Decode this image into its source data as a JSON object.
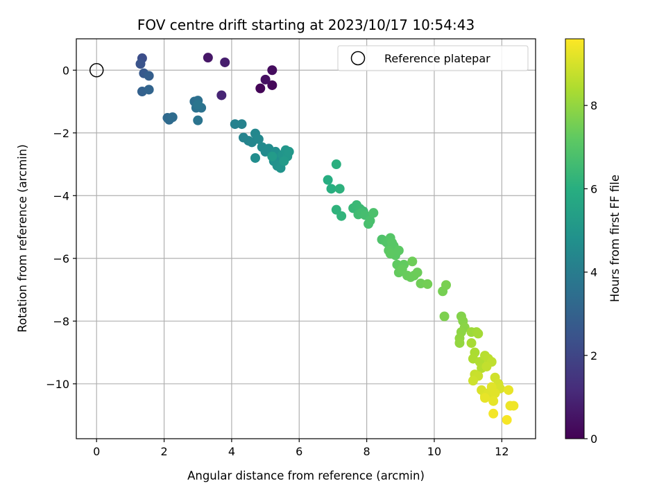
{
  "chart_data": {
    "type": "scatter",
    "title": "FOV centre drift starting at 2023/10/17 10:54:43",
    "xlabel": "Angular distance from reference (arcmin)",
    "ylabel": "Rotation from reference (arcmin)",
    "xlim": [
      -0.6,
      13.0
    ],
    "ylim": [
      -11.75,
      1.0
    ],
    "xticks": [
      0,
      2,
      4,
      6,
      8,
      10,
      12
    ],
    "yticks": [
      0,
      -2,
      -4,
      -6,
      -8,
      -10
    ],
    "xtick_labels": [
      "0",
      "2",
      "4",
      "6",
      "8",
      "10",
      "12"
    ],
    "ytick_labels": [
      "0",
      "−2",
      "−4",
      "−6",
      "−8",
      "−10"
    ],
    "grid": true,
    "legend": {
      "placement": "top-right",
      "entries": [
        "Reference platepar"
      ]
    },
    "reference_point": {
      "x": 0,
      "y": 0,
      "label": "Reference platepar"
    },
    "colorbar": {
      "label": "Hours from first FF file",
      "colormap": "viridis",
      "range": [
        0,
        9.6
      ],
      "ticks": [
        0,
        2,
        4,
        6,
        8
      ],
      "tick_labels": [
        "0",
        "2",
        "4",
        "6",
        "8"
      ]
    },
    "points": [
      {
        "x": 4.85,
        "y": -0.58,
        "c": 0.1
      },
      {
        "x": 5.2,
        "y": -0.48,
        "c": 0.2
      },
      {
        "x": 5.2,
        "y": 0.0,
        "c": 0.3
      },
      {
        "x": 5.0,
        "y": -0.3,
        "c": 0.4
      },
      {
        "x": 3.3,
        "y": 0.4,
        "c": 0.6
      },
      {
        "x": 3.8,
        "y": 0.25,
        "c": 0.8
      },
      {
        "x": 3.7,
        "y": -0.8,
        "c": 1.0
      },
      {
        "x": 1.35,
        "y": 0.38,
        "c": 2.3
      },
      {
        "x": 1.3,
        "y": 0.2,
        "c": 2.5
      },
      {
        "x": 1.4,
        "y": -0.1,
        "c": 2.7
      },
      {
        "x": 1.55,
        "y": -0.18,
        "c": 2.9
      },
      {
        "x": 1.35,
        "y": -0.68,
        "c": 3.0
      },
      {
        "x": 1.55,
        "y": -0.62,
        "c": 3.1
      },
      {
        "x": 2.1,
        "y": -1.52,
        "c": 3.3
      },
      {
        "x": 2.15,
        "y": -1.58,
        "c": 3.35
      },
      {
        "x": 2.25,
        "y": -1.5,
        "c": 3.4
      },
      {
        "x": 2.9,
        "y": -1.0,
        "c": 3.5
      },
      {
        "x": 3.0,
        "y": -0.97,
        "c": 3.55
      },
      {
        "x": 2.95,
        "y": -1.2,
        "c": 3.6
      },
      {
        "x": 3.1,
        "y": -1.2,
        "c": 3.65
      },
      {
        "x": 3.0,
        "y": -1.6,
        "c": 3.7
      },
      {
        "x": 3.0,
        "y": -1.1,
        "c": 3.75
      },
      {
        "x": 4.1,
        "y": -1.72,
        "c": 4.2
      },
      {
        "x": 4.3,
        "y": -1.72,
        "c": 4.25
      },
      {
        "x": 4.35,
        "y": -2.15,
        "c": 4.3
      },
      {
        "x": 4.5,
        "y": -2.25,
        "c": 4.35
      },
      {
        "x": 4.6,
        "y": -2.3,
        "c": 4.4
      },
      {
        "x": 4.7,
        "y": -2.02,
        "c": 4.45
      },
      {
        "x": 4.8,
        "y": -2.2,
        "c": 4.5
      },
      {
        "x": 4.9,
        "y": -2.45,
        "c": 4.55
      },
      {
        "x": 5.0,
        "y": -2.6,
        "c": 4.6
      },
      {
        "x": 5.1,
        "y": -2.5,
        "c": 4.65
      },
      {
        "x": 4.7,
        "y": -2.8,
        "c": 4.7
      },
      {
        "x": 5.3,
        "y": -2.6,
        "c": 4.75
      },
      {
        "x": 5.4,
        "y": -2.8,
        "c": 4.8
      },
      {
        "x": 5.25,
        "y": -2.9,
        "c": 4.85
      },
      {
        "x": 5.35,
        "y": -3.05,
        "c": 4.9
      },
      {
        "x": 5.45,
        "y": -3.12,
        "c": 4.95
      },
      {
        "x": 5.5,
        "y": -2.7,
        "c": 5.0
      },
      {
        "x": 5.6,
        "y": -2.55,
        "c": 5.05
      },
      {
        "x": 5.65,
        "y": -2.75,
        "c": 5.1
      },
      {
        "x": 5.7,
        "y": -2.6,
        "c": 5.15
      },
      {
        "x": 5.55,
        "y": -2.9,
        "c": 5.2
      },
      {
        "x": 5.2,
        "y": -2.75,
        "c": 5.25
      },
      {
        "x": 6.85,
        "y": -3.5,
        "c": 6.0
      },
      {
        "x": 6.95,
        "y": -3.78,
        "c": 6.05
      },
      {
        "x": 7.1,
        "y": -3.0,
        "c": 6.1
      },
      {
        "x": 7.2,
        "y": -3.78,
        "c": 6.15
      },
      {
        "x": 7.1,
        "y": -4.45,
        "c": 6.2
      },
      {
        "x": 7.25,
        "y": -4.65,
        "c": 6.25
      },
      {
        "x": 7.6,
        "y": -4.4,
        "c": 6.4
      },
      {
        "x": 7.7,
        "y": -4.3,
        "c": 6.45
      },
      {
        "x": 7.8,
        "y": -4.42,
        "c": 6.5
      },
      {
        "x": 7.9,
        "y": -4.5,
        "c": 6.55
      },
      {
        "x": 7.75,
        "y": -4.6,
        "c": 6.6
      },
      {
        "x": 7.85,
        "y": -4.55,
        "c": 6.65
      },
      {
        "x": 7.95,
        "y": -4.62,
        "c": 6.7
      },
      {
        "x": 8.05,
        "y": -4.9,
        "c": 6.75
      },
      {
        "x": 8.1,
        "y": -4.8,
        "c": 6.8
      },
      {
        "x": 8.2,
        "y": -4.55,
        "c": 6.85
      },
      {
        "x": 8.45,
        "y": -5.4,
        "c": 6.9
      },
      {
        "x": 8.55,
        "y": -5.45,
        "c": 6.95
      },
      {
        "x": 8.6,
        "y": -5.5,
        "c": 7.0
      },
      {
        "x": 8.7,
        "y": -5.35,
        "c": 7.05
      },
      {
        "x": 8.75,
        "y": -5.5,
        "c": 7.1
      },
      {
        "x": 8.8,
        "y": -5.6,
        "c": 7.12
      },
      {
        "x": 8.65,
        "y": -5.75,
        "c": 7.15
      },
      {
        "x": 8.85,
        "y": -5.9,
        "c": 7.18
      },
      {
        "x": 8.95,
        "y": -5.75,
        "c": 7.2
      },
      {
        "x": 8.7,
        "y": -5.85,
        "c": 7.22
      },
      {
        "x": 8.9,
        "y": -6.2,
        "c": 7.25
      },
      {
        "x": 9.0,
        "y": -6.3,
        "c": 7.28
      },
      {
        "x": 9.1,
        "y": -6.2,
        "c": 7.3
      },
      {
        "x": 8.95,
        "y": -6.45,
        "c": 7.32
      },
      {
        "x": 9.05,
        "y": -6.35,
        "c": 7.35
      },
      {
        "x": 9.2,
        "y": -6.55,
        "c": 7.38
      },
      {
        "x": 9.3,
        "y": -6.6,
        "c": 7.4
      },
      {
        "x": 9.4,
        "y": -6.55,
        "c": 7.42
      },
      {
        "x": 9.5,
        "y": -6.45,
        "c": 7.45
      },
      {
        "x": 9.35,
        "y": -6.1,
        "c": 7.48
      },
      {
        "x": 9.6,
        "y": -6.8,
        "c": 7.5
      },
      {
        "x": 9.8,
        "y": -6.82,
        "c": 7.55
      },
      {
        "x": 10.25,
        "y": -7.05,
        "c": 7.6
      },
      {
        "x": 10.35,
        "y": -6.85,
        "c": 7.65
      },
      {
        "x": 10.3,
        "y": -7.85,
        "c": 7.7
      },
      {
        "x": 10.8,
        "y": -7.85,
        "c": 7.8
      },
      {
        "x": 10.85,
        "y": -8.0,
        "c": 7.85
      },
      {
        "x": 10.9,
        "y": -8.2,
        "c": 7.9
      },
      {
        "x": 10.8,
        "y": -8.35,
        "c": 7.95
      },
      {
        "x": 10.75,
        "y": -8.55,
        "c": 8.0
      },
      {
        "x": 10.75,
        "y": -8.7,
        "c": 8.05
      },
      {
        "x": 11.1,
        "y": -8.35,
        "c": 8.2
      },
      {
        "x": 11.25,
        "y": -8.35,
        "c": 8.25
      },
      {
        "x": 11.3,
        "y": -8.4,
        "c": 8.3
      },
      {
        "x": 11.1,
        "y": -8.7,
        "c": 8.35
      },
      {
        "x": 11.2,
        "y": -9.0,
        "c": 8.4
      },
      {
        "x": 11.15,
        "y": -9.2,
        "c": 8.45
      },
      {
        "x": 11.35,
        "y": -9.3,
        "c": 8.5
      },
      {
        "x": 11.4,
        "y": -9.5,
        "c": 8.55
      },
      {
        "x": 11.5,
        "y": -9.1,
        "c": 8.6
      },
      {
        "x": 11.6,
        "y": -9.2,
        "c": 8.65
      },
      {
        "x": 11.7,
        "y": -9.3,
        "c": 8.7
      },
      {
        "x": 11.55,
        "y": -9.45,
        "c": 8.75
      },
      {
        "x": 11.2,
        "y": -9.7,
        "c": 8.8
      },
      {
        "x": 11.3,
        "y": -9.75,
        "c": 8.85
      },
      {
        "x": 11.15,
        "y": -9.9,
        "c": 8.9
      },
      {
        "x": 11.8,
        "y": -9.8,
        "c": 8.95
      },
      {
        "x": 11.9,
        "y": -10.0,
        "c": 9.0
      },
      {
        "x": 11.95,
        "y": -10.15,
        "c": 9.05
      },
      {
        "x": 11.4,
        "y": -10.2,
        "c": 9.1
      },
      {
        "x": 11.5,
        "y": -10.4,
        "c": 9.12
      },
      {
        "x": 11.6,
        "y": -10.3,
        "c": 9.15
      },
      {
        "x": 11.7,
        "y": -10.1,
        "c": 9.18
      },
      {
        "x": 11.8,
        "y": -10.3,
        "c": 9.2
      },
      {
        "x": 11.75,
        "y": -10.55,
        "c": 9.25
      },
      {
        "x": 11.5,
        "y": -10.45,
        "c": 9.28
      },
      {
        "x": 12.2,
        "y": -10.2,
        "c": 9.3
      },
      {
        "x": 12.25,
        "y": -10.7,
        "c": 9.35
      },
      {
        "x": 12.35,
        "y": -10.7,
        "c": 9.4
      },
      {
        "x": 11.75,
        "y": -10.95,
        "c": 9.45
      },
      {
        "x": 12.15,
        "y": -11.15,
        "c": 9.5
      }
    ]
  }
}
